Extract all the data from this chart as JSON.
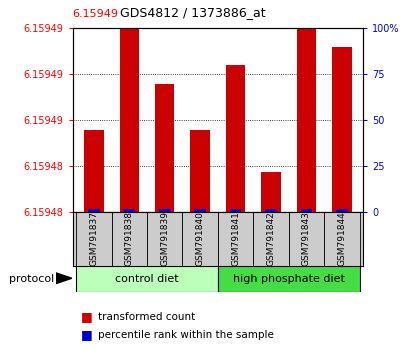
{
  "title": "GDS4812 / 1373886_at",
  "title_red": "6.15949",
  "samples": [
    "GSM791837",
    "GSM791838",
    "GSM791839",
    "GSM791840",
    "GSM791841",
    "GSM791842",
    "GSM791843",
    "GSM791844"
  ],
  "red_pct": [
    45,
    100,
    70,
    45,
    80,
    22,
    100,
    90
  ],
  "blue_pct": [
    2,
    2,
    2,
    2,
    2,
    2,
    2,
    2
  ],
  "ylim_right": [
    0,
    100
  ],
  "ytick_labels_left": [
    "6.15948",
    "6.15948",
    "6.15949",
    "6.15949",
    "6.15949"
  ],
  "ytick_labels_right": [
    "0",
    "25",
    "50",
    "75",
    "100%"
  ],
  "group1_label": "control diet",
  "group2_label": "high phosphate diet",
  "group1_color": "#BBFFBB",
  "group2_color": "#44DD44",
  "protocol_label": "protocol",
  "bar_color_red": "#CC0000",
  "bar_color_blue": "#0000CC",
  "legend_red": "transformed count",
  "legend_blue": "percentile rank within the sample"
}
